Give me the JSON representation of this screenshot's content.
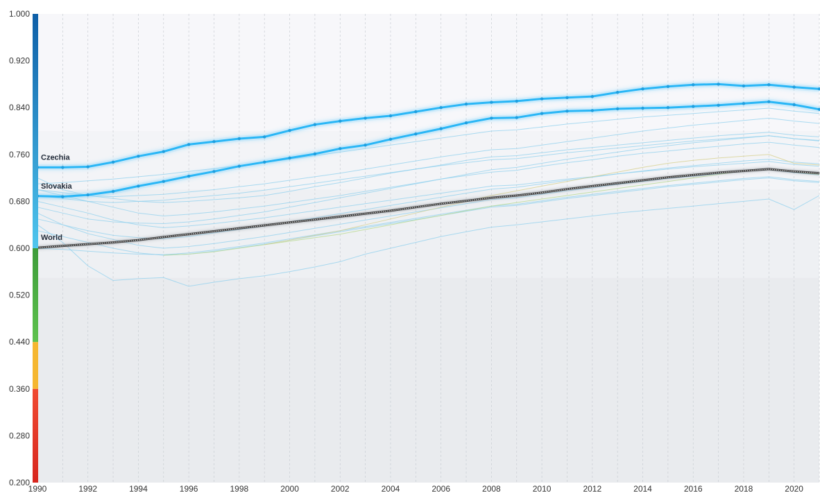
{
  "chart_data": {
    "type": "line",
    "title": "",
    "xlabel": "",
    "ylabel": "",
    "xlim": [
      1990,
      2021
    ],
    "ylim": [
      0.2,
      1.0
    ],
    "grid": true,
    "legend": "none",
    "x_ticks": [
      "1990",
      "1992",
      "1994",
      "1996",
      "1998",
      "2000",
      "2002",
      "2004",
      "2006",
      "2008",
      "2010",
      "2012",
      "2014",
      "2016",
      "2018",
      "2020"
    ],
    "y_ticks": [
      "0.200",
      "0.280",
      "0.360",
      "0.440",
      "0.520",
      "0.600",
      "0.680",
      "0.760",
      "0.840",
      "0.920",
      "1.000"
    ],
    "x": [
      1990,
      1991,
      1992,
      1993,
      1994,
      1995,
      1996,
      1997,
      1998,
      1999,
      2000,
      2001,
      2002,
      2003,
      2004,
      2005,
      2006,
      2007,
      2008,
      2009,
      2010,
      2011,
      2012,
      2013,
      2014,
      2015,
      2016,
      2017,
      2018,
      2019,
      2020,
      2021
    ],
    "series": [
      {
        "name": "Czechia",
        "color": "#29b6f6",
        "values": [
          0.738,
          0.738,
          0.739,
          0.747,
          0.757,
          0.765,
          0.777,
          0.782,
          0.787,
          0.79,
          0.801,
          0.811,
          0.817,
          0.822,
          0.826,
          0.833,
          0.84,
          0.846,
          0.849,
          0.851,
          0.855,
          0.857,
          0.859,
          0.866,
          0.872,
          0.876,
          0.879,
          0.88,
          0.877,
          0.879,
          0.875,
          0.872
        ]
      },
      {
        "name": "Slovakia",
        "color": "#29b6f6",
        "values": [
          0.689,
          0.688,
          0.691,
          0.697,
          0.706,
          0.714,
          0.723,
          0.731,
          0.74,
          0.747,
          0.754,
          0.761,
          0.77,
          0.776,
          0.786,
          0.795,
          0.804,
          0.814,
          0.822,
          0.823,
          0.83,
          0.834,
          0.835,
          0.838,
          0.839,
          0.84,
          0.842,
          0.844,
          0.847,
          0.85,
          0.845,
          0.837
        ]
      },
      {
        "name": "World",
        "color": "#555555",
        "values": [
          0.601,
          0.604,
          0.607,
          0.61,
          0.614,
          0.619,
          0.624,
          0.629,
          0.634,
          0.639,
          0.644,
          0.649,
          0.654,
          0.659,
          0.664,
          0.67,
          0.676,
          0.681,
          0.686,
          0.69,
          0.695,
          0.701,
          0.706,
          0.711,
          0.716,
          0.721,
          0.725,
          0.729,
          0.732,
          0.735,
          0.731,
          0.728
        ]
      }
    ],
    "background_series": [
      {
        "color": "#8fd0ee",
        "values": [
          0.72,
          0.7,
          0.69,
          0.685,
          0.68,
          0.678,
          0.68,
          0.683,
          0.686,
          0.69,
          0.697,
          0.705,
          0.712,
          0.72,
          0.728,
          0.735,
          0.742,
          0.75,
          0.756,
          0.758,
          0.763,
          0.768,
          0.772,
          0.776,
          0.78,
          0.784,
          0.788,
          0.792,
          0.795,
          0.798,
          0.793,
          0.79
        ]
      },
      {
        "color": "#8fd0ee",
        "values": [
          0.7,
          0.69,
          0.68,
          0.67,
          0.66,
          0.655,
          0.658,
          0.662,
          0.667,
          0.672,
          0.678,
          0.684,
          0.69,
          0.697,
          0.704,
          0.711,
          0.718,
          0.724,
          0.73,
          0.733,
          0.74,
          0.746,
          0.751,
          0.757,
          0.762,
          0.766,
          0.77,
          0.774,
          0.778,
          0.781,
          0.776,
          0.772
        ]
      },
      {
        "color": "#8fd0ee",
        "values": [
          0.68,
          0.67,
          0.66,
          0.648,
          0.64,
          0.635,
          0.638,
          0.642,
          0.647,
          0.652,
          0.658,
          0.664,
          0.67,
          0.676,
          0.682,
          0.688,
          0.694,
          0.7,
          0.706,
          0.708,
          0.713,
          0.718,
          0.722,
          0.727,
          0.731,
          0.735,
          0.739,
          0.742,
          0.745,
          0.748,
          0.743,
          0.74
        ]
      },
      {
        "color": "#8fd0ee",
        "values": [
          0.66,
          0.64,
          0.625,
          0.615,
          0.605,
          0.6,
          0.603,
          0.608,
          0.614,
          0.62,
          0.627,
          0.634,
          0.641,
          0.648,
          0.655,
          0.662,
          0.669,
          0.676,
          0.683,
          0.686,
          0.692,
          0.698,
          0.703,
          0.709,
          0.714,
          0.719,
          0.723,
          0.727,
          0.731,
          0.734,
          0.729,
          0.725
        ]
      },
      {
        "color": "#8fd0ee",
        "values": [
          0.64,
          0.61,
          0.57,
          0.545,
          0.548,
          0.55,
          0.535,
          0.542,
          0.548,
          0.553,
          0.56,
          0.568,
          0.577,
          0.59,
          0.6,
          0.61,
          0.62,
          0.628,
          0.636,
          0.64,
          0.645,
          0.65,
          0.655,
          0.66,
          0.664,
          0.668,
          0.672,
          0.676,
          0.68,
          0.684,
          0.666,
          0.69
        ]
      },
      {
        "color": "#8fd0ee",
        "values": [
          0.7,
          0.695,
          0.69,
          0.688,
          0.69,
          0.692,
          0.696,
          0.7,
          0.705,
          0.71,
          0.716,
          0.722,
          0.728,
          0.735,
          0.742,
          0.749,
          0.756,
          0.762,
          0.768,
          0.77,
          0.776,
          0.782,
          0.788,
          0.794,
          0.8,
          0.805,
          0.81,
          0.814,
          0.818,
          0.822,
          0.817,
          0.813
        ]
      },
      {
        "color": "#8fd0ee",
        "values": [
          0.69,
          0.685,
          0.68,
          0.678,
          0.68,
          0.682,
          0.686,
          0.69,
          0.694,
          0.699,
          0.705,
          0.711,
          0.717,
          0.723,
          0.729,
          0.735,
          0.741,
          0.746,
          0.751,
          0.753,
          0.758,
          0.763,
          0.767,
          0.771,
          0.775,
          0.779,
          0.783,
          0.786,
          0.789,
          0.792,
          0.787,
          0.784
        ]
      },
      {
        "color": "#8fd0ee",
        "values": [
          0.67,
          0.66,
          0.65,
          0.645,
          0.643,
          0.642,
          0.645,
          0.65,
          0.656,
          0.662,
          0.67,
          0.678,
          0.686,
          0.694,
          0.702,
          0.71,
          0.718,
          0.726,
          0.734,
          0.738,
          0.745,
          0.752,
          0.758,
          0.764,
          0.77,
          0.775,
          0.78,
          0.784,
          0.788,
          0.792,
          0.787,
          0.783
        ]
      },
      {
        "color": "#8fd0ee",
        "values": [
          0.65,
          0.64,
          0.63,
          0.622,
          0.618,
          0.616,
          0.62,
          0.626,
          0.632,
          0.638,
          0.645,
          0.652,
          0.659,
          0.666,
          0.673,
          0.68,
          0.687,
          0.694,
          0.701,
          0.704,
          0.71,
          0.716,
          0.721,
          0.727,
          0.732,
          0.737,
          0.741,
          0.745,
          0.749,
          0.752,
          0.747,
          0.744
        ]
      },
      {
        "color": "#8fd0ee",
        "values": [
          0.63,
          0.62,
          0.61,
          0.6,
          0.592,
          0.588,
          0.59,
          0.595,
          0.601,
          0.607,
          0.614,
          0.621,
          0.628,
          0.635,
          0.642,
          0.649,
          0.656,
          0.663,
          0.67,
          0.673,
          0.679,
          0.685,
          0.69,
          0.695,
          0.7,
          0.705,
          0.709,
          0.713,
          0.717,
          0.72,
          0.715,
          0.712
        ]
      },
      {
        "color": "#8fd0ee",
        "values": [
          0.71,
          0.712,
          0.715,
          0.718,
          0.722,
          0.726,
          0.731,
          0.736,
          0.741,
          0.746,
          0.752,
          0.758,
          0.764,
          0.77,
          0.776,
          0.782,
          0.788,
          0.794,
          0.8,
          0.802,
          0.807,
          0.812,
          0.816,
          0.82,
          0.824,
          0.827,
          0.83,
          0.833,
          0.836,
          0.839,
          0.834,
          0.83
        ]
      },
      {
        "color": "#8fd0ee",
        "values": [
          0.6,
          0.598,
          0.595,
          0.592,
          0.59,
          0.589,
          0.592,
          0.597,
          0.603,
          0.609,
          0.616,
          0.623,
          0.63,
          0.637,
          0.644,
          0.651,
          0.658,
          0.665,
          0.672,
          0.675,
          0.681,
          0.687,
          0.692,
          0.697,
          0.702,
          0.707,
          0.711,
          0.715,
          0.719,
          0.722,
          0.717,
          0.714
        ]
      },
      {
        "color": "#b7d98c",
        "values": [
          null,
          null,
          null,
          null,
          null,
          0.588,
          0.59,
          0.594,
          0.6,
          0.606,
          0.612,
          0.618,
          0.624,
          0.632,
          0.64,
          0.648,
          0.656,
          0.664,
          0.672,
          0.678,
          0.684,
          0.69,
          0.696,
          0.702,
          0.708,
          0.714,
          0.72,
          0.726,
          0.732,
          0.736,
          0.73,
          0.726
        ]
      },
      {
        "color": "#d6cf8a",
        "values": [
          null,
          null,
          null,
          null,
          null,
          null,
          null,
          null,
          null,
          0.606,
          0.614,
          0.622,
          0.63,
          0.64,
          0.65,
          0.66,
          0.67,
          0.68,
          0.69,
          0.698,
          0.706,
          0.714,
          0.722,
          0.73,
          0.738,
          0.745,
          0.75,
          0.754,
          0.757,
          0.76,
          0.745,
          0.742
        ]
      }
    ],
    "color_bands": [
      {
        "from": 0.2,
        "to": 0.36,
        "color": "#d7261e",
        "top_color": "#f04a32"
      },
      {
        "from": 0.36,
        "to": 0.44,
        "color": "#f5b731",
        "top_color": "#f5b731"
      },
      {
        "from": 0.44,
        "to": 0.6,
        "color": "#5ec24e",
        "top_color": "#3d9c3a"
      },
      {
        "from": 0.6,
        "to": 1.0,
        "color": "#4fc6ee",
        "top_color": "#0e5fa8"
      }
    ],
    "background_bands": [
      {
        "from": 0.2,
        "to": 0.55,
        "color": "#e9ebee"
      },
      {
        "from": 0.55,
        "to": 0.7,
        "color": "#eef0f3"
      },
      {
        "from": 0.7,
        "to": 0.8,
        "color": "#f3f4f7"
      },
      {
        "from": 0.8,
        "to": 1.0,
        "color": "#f7f7fa"
      }
    ],
    "labels": [
      {
        "series": "Czechia",
        "text": "Czechia"
      },
      {
        "series": "Slovakia",
        "text": "Slovakia"
      },
      {
        "series": "World",
        "text": "World"
      }
    ]
  }
}
